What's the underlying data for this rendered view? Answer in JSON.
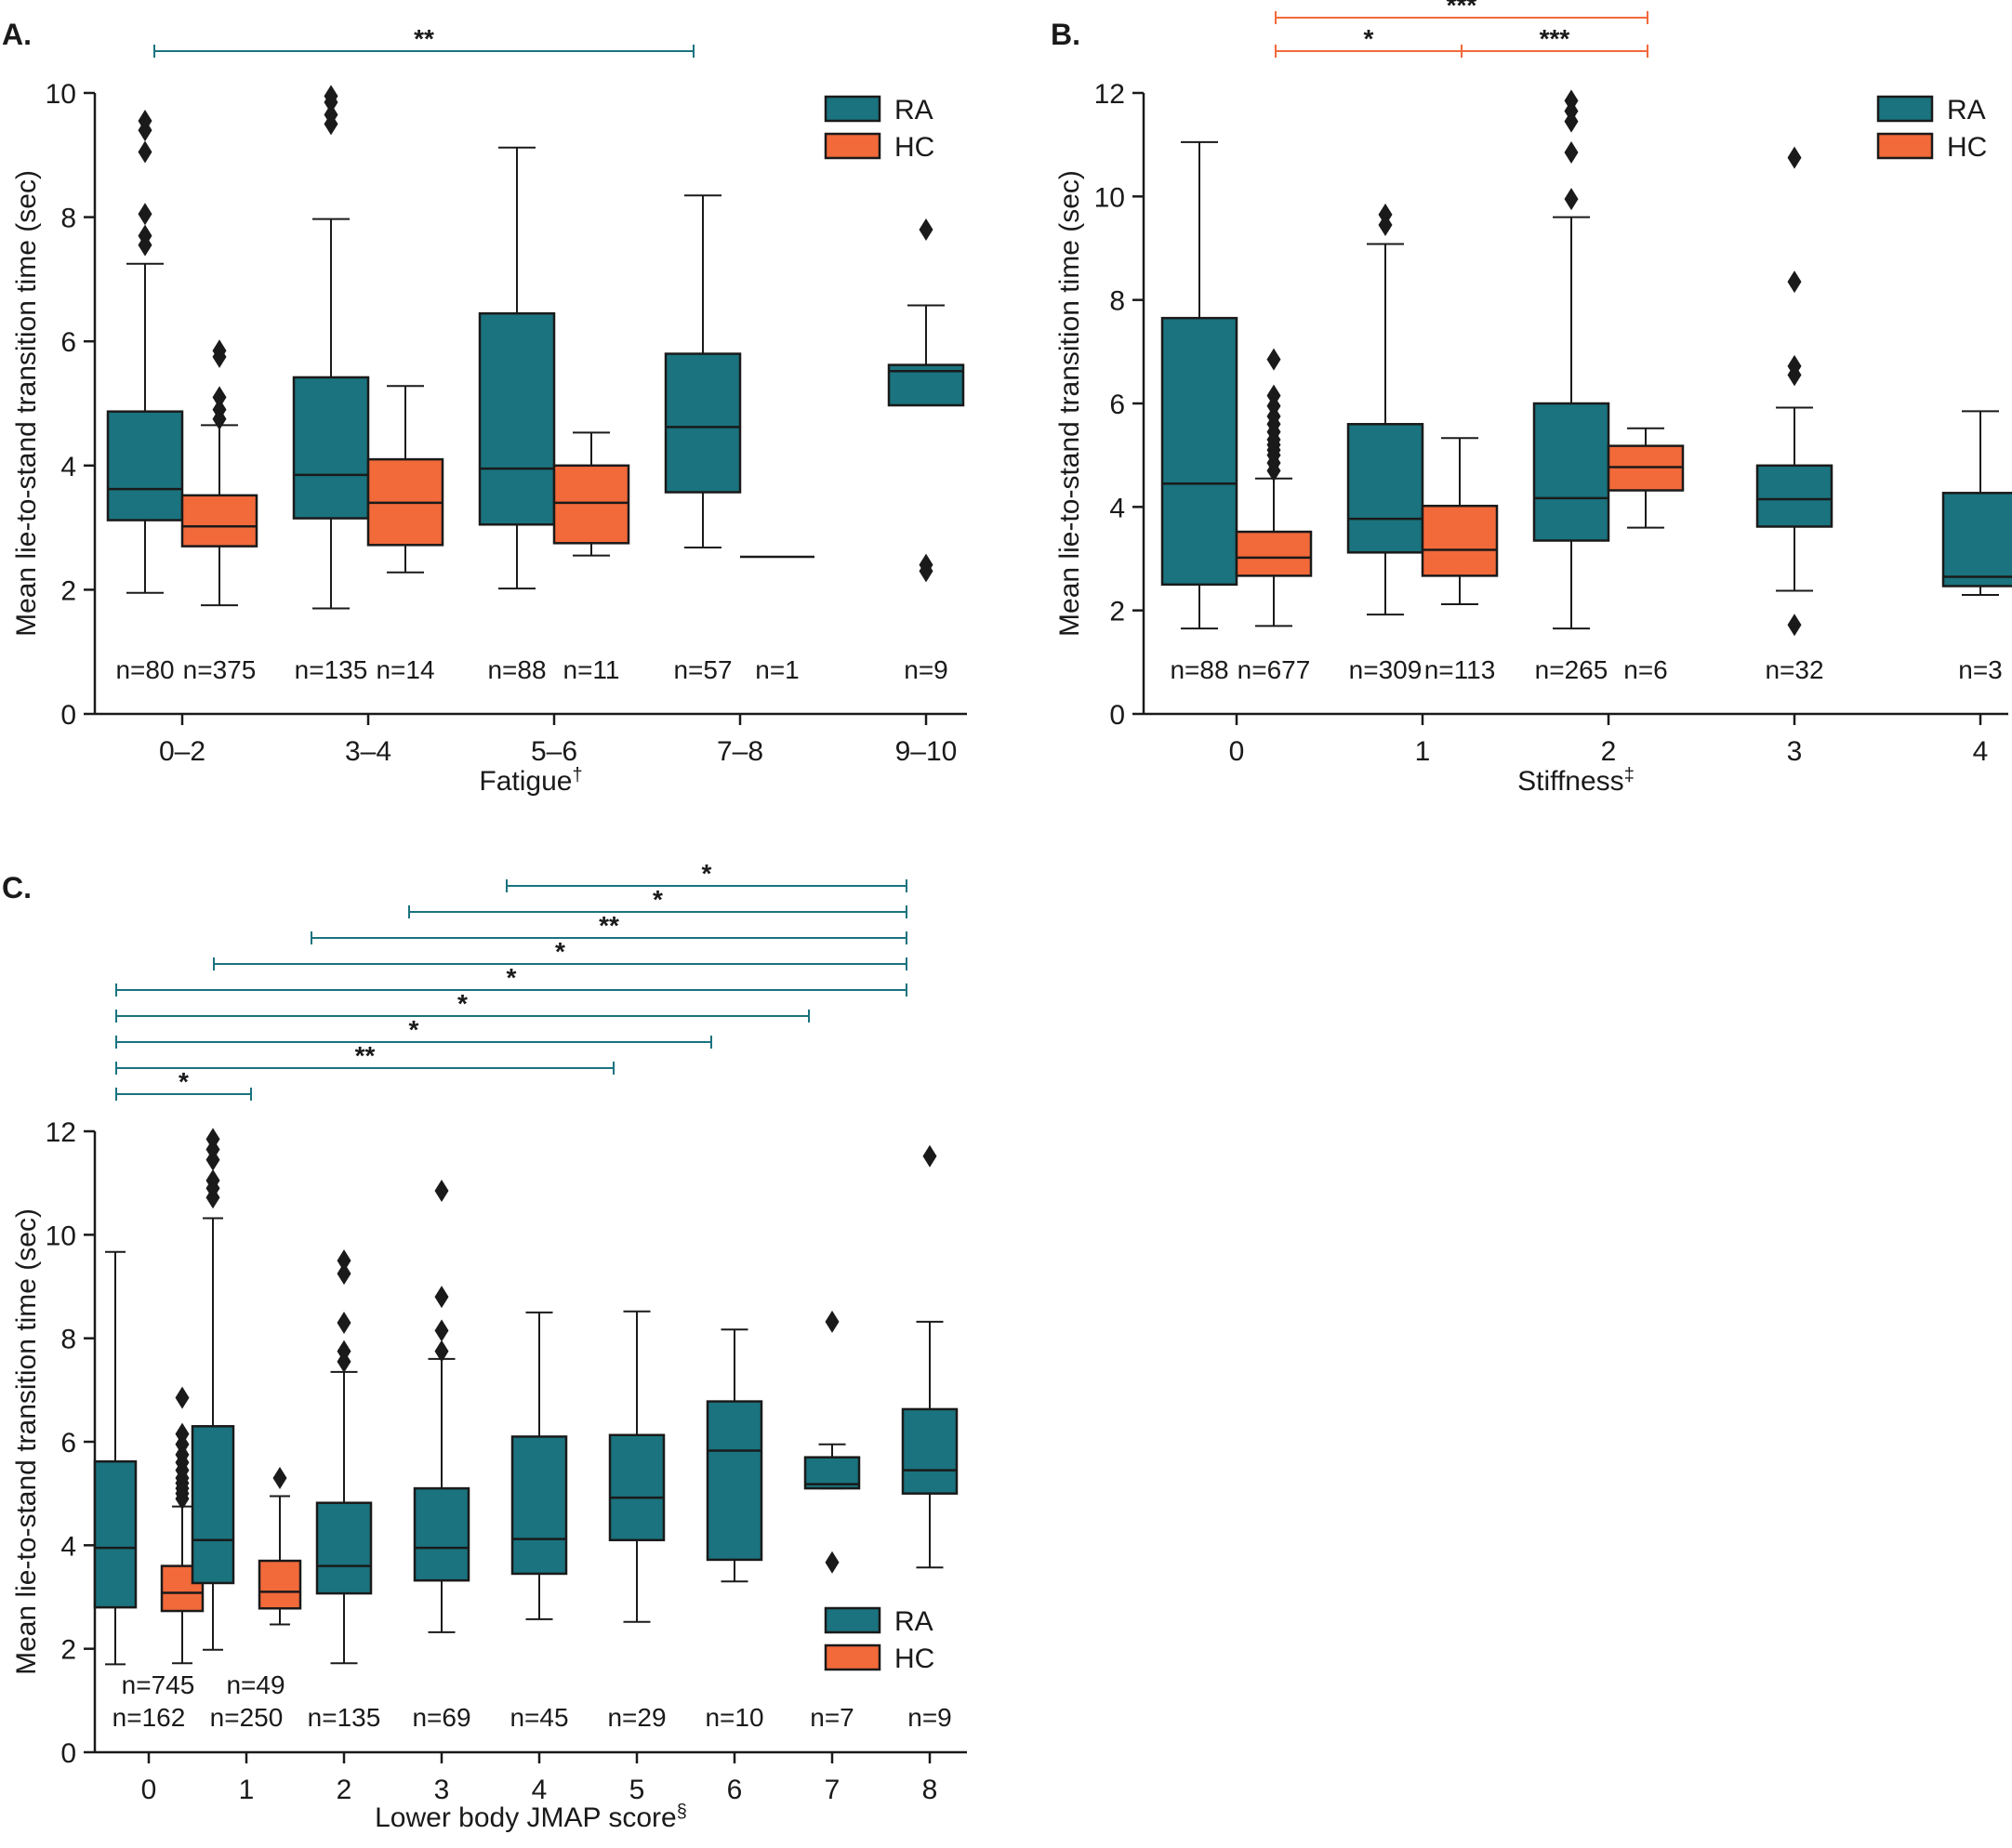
{
  "colors": {
    "RA": "#1a737e",
    "HC": "#f2693a",
    "outline": "#1a1a1a"
  },
  "chart_data": [
    {
      "type": "box",
      "panel": "A.",
      "xlabel": "Fatigue",
      "xlabel_sup": "†",
      "ylabel": "Mean lie-to-stand transition time (sec)",
      "ylim": [
        0,
        10
      ],
      "yticks": [
        0,
        2,
        4,
        6,
        8,
        10
      ],
      "categories": [
        "0–2",
        "3–4",
        "5–6",
        "7–8",
        "9–10"
      ],
      "legend": {
        "position": "top-right",
        "entries": [
          "RA",
          "HC"
        ]
      },
      "boxes": [
        {
          "cat": 0,
          "group": "RA",
          "whislo": 1.95,
          "q1": 3.12,
          "med": 3.62,
          "q3": 4.87,
          "whishi": 7.25,
          "fliers": [
            7.55,
            7.7,
            8.05,
            9.05,
            9.4,
            9.55
          ],
          "n": "n=80"
        },
        {
          "cat": 0,
          "group": "HC",
          "whislo": 1.75,
          "q1": 2.7,
          "med": 3.02,
          "q3": 3.52,
          "whishi": 4.65,
          "fliers": [
            4.75,
            4.9,
            5.1,
            5.75,
            5.85
          ],
          "n": "n=375"
        },
        {
          "cat": 1,
          "group": "RA",
          "whislo": 1.7,
          "q1": 3.15,
          "med": 3.85,
          "q3": 5.42,
          "whishi": 7.97,
          "fliers": [
            9.5,
            9.65,
            9.85,
            9.95
          ],
          "n": "n=135"
        },
        {
          "cat": 1,
          "group": "HC",
          "whislo": 2.28,
          "q1": 2.72,
          "med": 3.4,
          "q3": 4.1,
          "whishi": 5.28,
          "fliers": [],
          "n": "n=14"
        },
        {
          "cat": 2,
          "group": "RA",
          "whislo": 2.02,
          "q1": 3.05,
          "med": 3.95,
          "q3": 6.45,
          "whishi": 9.12,
          "fliers": [],
          "n": "n=88"
        },
        {
          "cat": 2,
          "group": "HC",
          "whislo": 2.55,
          "q1": 2.75,
          "med": 3.4,
          "q3": 4.0,
          "whishi": 4.53,
          "fliers": [],
          "n": "n=11"
        },
        {
          "cat": 3,
          "group": "RA",
          "whislo": 2.68,
          "q1": 3.57,
          "med": 4.62,
          "q3": 5.8,
          "whishi": 8.35,
          "fliers": [],
          "n": "n=57"
        },
        {
          "cat": 3,
          "group": "HC",
          "whislo": 2.53,
          "q1": 2.53,
          "med": 2.53,
          "q3": 2.53,
          "whishi": 2.53,
          "fliers": [],
          "n": "n=1"
        },
        {
          "cat": 4,
          "group": "RA",
          "whislo": 4.97,
          "q1": 4.97,
          "med": 5.52,
          "q3": 5.62,
          "whishi": 6.58,
          "fliers": [
            2.3,
            2.4,
            7.8
          ],
          "n": "n=9"
        }
      ],
      "annotations": [
        {
          "x1": 0,
          "x2": 3,
          "level": 0,
          "label": "**",
          "color": "RA"
        }
      ]
    },
    {
      "type": "box",
      "panel": "B.",
      "xlabel": "Stiffness",
      "xlabel_sup": "‡",
      "ylabel": "Mean lie-to-stand transition time (sec)",
      "ylim": [
        0,
        12
      ],
      "yticks": [
        0,
        2,
        4,
        6,
        8,
        10,
        12
      ],
      "categories": [
        "0",
        "1",
        "2",
        "3",
        "4"
      ],
      "legend": {
        "position": "top-right",
        "entries": [
          "RA",
          "HC"
        ]
      },
      "boxes": [
        {
          "cat": 0,
          "group": "RA",
          "whislo": 1.65,
          "q1": 2.5,
          "med": 4.45,
          "q3": 7.65,
          "whishi": 11.05,
          "fliers": [],
          "n": "n=88"
        },
        {
          "cat": 0,
          "group": "HC",
          "whislo": 1.7,
          "q1": 2.67,
          "med": 3.02,
          "q3": 3.52,
          "whishi": 4.55,
          "fliers": [
            4.7,
            4.85,
            5.0,
            5.1,
            5.2,
            5.3,
            5.45,
            5.6,
            5.75,
            5.95,
            6.15,
            6.85
          ],
          "n": "n=677"
        },
        {
          "cat": 1,
          "group": "RA",
          "whislo": 1.92,
          "q1": 3.12,
          "med": 3.77,
          "q3": 5.6,
          "whishi": 9.08,
          "fliers": [
            9.45,
            9.65
          ],
          "n": "n=309"
        },
        {
          "cat": 1,
          "group": "HC",
          "whislo": 2.12,
          "q1": 2.67,
          "med": 3.17,
          "q3": 4.02,
          "whishi": 5.33,
          "fliers": [],
          "n": "n=113"
        },
        {
          "cat": 2,
          "group": "RA",
          "whislo": 1.65,
          "q1": 3.35,
          "med": 4.17,
          "q3": 6.0,
          "whishi": 9.6,
          "fliers": [
            9.95,
            10.85,
            11.45,
            11.65,
            11.85
          ],
          "n": "n=265"
        },
        {
          "cat": 2,
          "group": "HC",
          "whislo": 3.6,
          "q1": 4.32,
          "med": 4.77,
          "q3": 5.18,
          "whishi": 5.52,
          "fliers": [],
          "n": "n=6"
        },
        {
          "cat": 3,
          "group": "RA",
          "whislo": 2.38,
          "q1": 3.62,
          "med": 4.15,
          "q3": 4.8,
          "whishi": 5.92,
          "fliers": [
            1.72,
            6.55,
            6.72,
            8.35,
            10.75
          ],
          "n": "n=32"
        },
        {
          "cat": 4,
          "group": "RA",
          "whislo": 2.3,
          "q1": 2.47,
          "med": 2.65,
          "q3": 4.27,
          "whishi": 5.85,
          "fliers": [],
          "n": "n=3"
        }
      ],
      "annotations": [
        {
          "x1": 0,
          "x2": 1,
          "level": 0,
          "label": "*",
          "color": "HC"
        },
        {
          "x1": 1,
          "x2": 2,
          "level": 0,
          "label": "***",
          "color": "HC"
        },
        {
          "x1": 0,
          "x2": 2,
          "level": 1,
          "label": "***",
          "color": "HC"
        }
      ]
    },
    {
      "type": "box",
      "panel": "C.",
      "xlabel": "Lower body JMAP score",
      "xlabel_sup": "§",
      "ylabel": "Mean lie-to-stand transition time (sec)",
      "ylim": [
        0,
        12
      ],
      "yticks": [
        0,
        2,
        4,
        6,
        8,
        10,
        12
      ],
      "categories": [
        "0",
        "1",
        "2",
        "3",
        "4",
        "5",
        "6",
        "7",
        "8"
      ],
      "legend": {
        "position": "bottom-right",
        "entries": [
          "RA",
          "HC"
        ]
      },
      "boxes": [
        {
          "cat": 0,
          "group": "RA",
          "whislo": 1.7,
          "q1": 2.8,
          "med": 3.95,
          "q3": 5.62,
          "whishi": 9.67,
          "fliers": [],
          "n": "n=162"
        },
        {
          "cat": 0,
          "group": "HC",
          "whislo": 1.72,
          "q1": 2.73,
          "med": 3.08,
          "q3": 3.6,
          "whishi": 4.75,
          "fliers": [
            4.9,
            5.0,
            5.1,
            5.2,
            5.3,
            5.45,
            5.6,
            5.75,
            5.95,
            6.15,
            6.85
          ],
          "n": "n=745"
        },
        {
          "cat": 1,
          "group": "RA",
          "whislo": 1.98,
          "q1": 3.27,
          "med": 4.1,
          "q3": 6.3,
          "whishi": 10.32,
          "fliers": [
            10.72,
            10.9,
            11.05,
            11.45,
            11.65,
            11.85
          ],
          "n": "n=250"
        },
        {
          "cat": 1,
          "group": "HC",
          "whislo": 2.47,
          "q1": 2.78,
          "med": 3.1,
          "q3": 3.7,
          "whishi": 4.95,
          "fliers": [
            5.3
          ],
          "n": "n=49"
        },
        {
          "cat": 2,
          "group": "RA",
          "whislo": 1.72,
          "q1": 3.07,
          "med": 3.6,
          "q3": 4.82,
          "whishi": 7.35,
          "fliers": [
            7.55,
            7.75,
            8.3,
            9.25,
            9.5
          ],
          "n": "n=135"
        },
        {
          "cat": 3,
          "group": "RA",
          "whislo": 2.32,
          "q1": 3.32,
          "med": 3.95,
          "q3": 5.1,
          "whishi": 7.6,
          "fliers": [
            7.75,
            8.15,
            8.8,
            10.85
          ],
          "n": "n=69"
        },
        {
          "cat": 4,
          "group": "RA",
          "whislo": 2.57,
          "q1": 3.45,
          "med": 4.12,
          "q3": 6.1,
          "whishi": 8.5,
          "fliers": [],
          "n": "n=45"
        },
        {
          "cat": 5,
          "group": "RA",
          "whislo": 2.52,
          "q1": 4.1,
          "med": 4.92,
          "q3": 6.13,
          "whishi": 8.52,
          "fliers": [],
          "n": "n=29"
        },
        {
          "cat": 6,
          "group": "RA",
          "whislo": 3.3,
          "q1": 3.72,
          "med": 5.83,
          "q3": 6.78,
          "whishi": 8.17,
          "fliers": [],
          "n": "n=10"
        },
        {
          "cat": 7,
          "group": "RA",
          "whislo": 5.1,
          "q1": 5.1,
          "med": 5.18,
          "q3": 5.7,
          "whishi": 5.95,
          "fliers": [
            3.67,
            8.32
          ],
          "n": "n=7"
        },
        {
          "cat": 8,
          "group": "RA",
          "whislo": 3.57,
          "q1": 5.0,
          "med": 5.45,
          "q3": 6.63,
          "whishi": 8.32,
          "fliers": [
            11.52
          ],
          "n": "n=9"
        }
      ],
      "annotations": [
        {
          "x1": 4,
          "x2": 8,
          "level": 8,
          "label": "*",
          "color": "RA"
        },
        {
          "x1": 3,
          "x2": 8,
          "level": 7,
          "label": "*",
          "color": "RA"
        },
        {
          "x1": 2,
          "x2": 8,
          "level": 6,
          "label": "**",
          "color": "RA"
        },
        {
          "x1": 1,
          "x2": 8,
          "level": 5,
          "label": "*",
          "color": "RA"
        },
        {
          "x1": 0,
          "x2": 8,
          "level": 4,
          "label": "*",
          "color": "RA"
        },
        {
          "x1": 0,
          "x2": 7,
          "level": 3,
          "label": "*",
          "color": "RA"
        },
        {
          "x1": 0,
          "x2": 6,
          "level": 2,
          "label": "*",
          "color": "RA"
        },
        {
          "x1": 0,
          "x2": 5,
          "level": 1,
          "label": "**",
          "color": "RA"
        },
        {
          "x1": 0,
          "x2": 1,
          "level": 0,
          "label": "*",
          "color": "RA"
        }
      ]
    }
  ]
}
